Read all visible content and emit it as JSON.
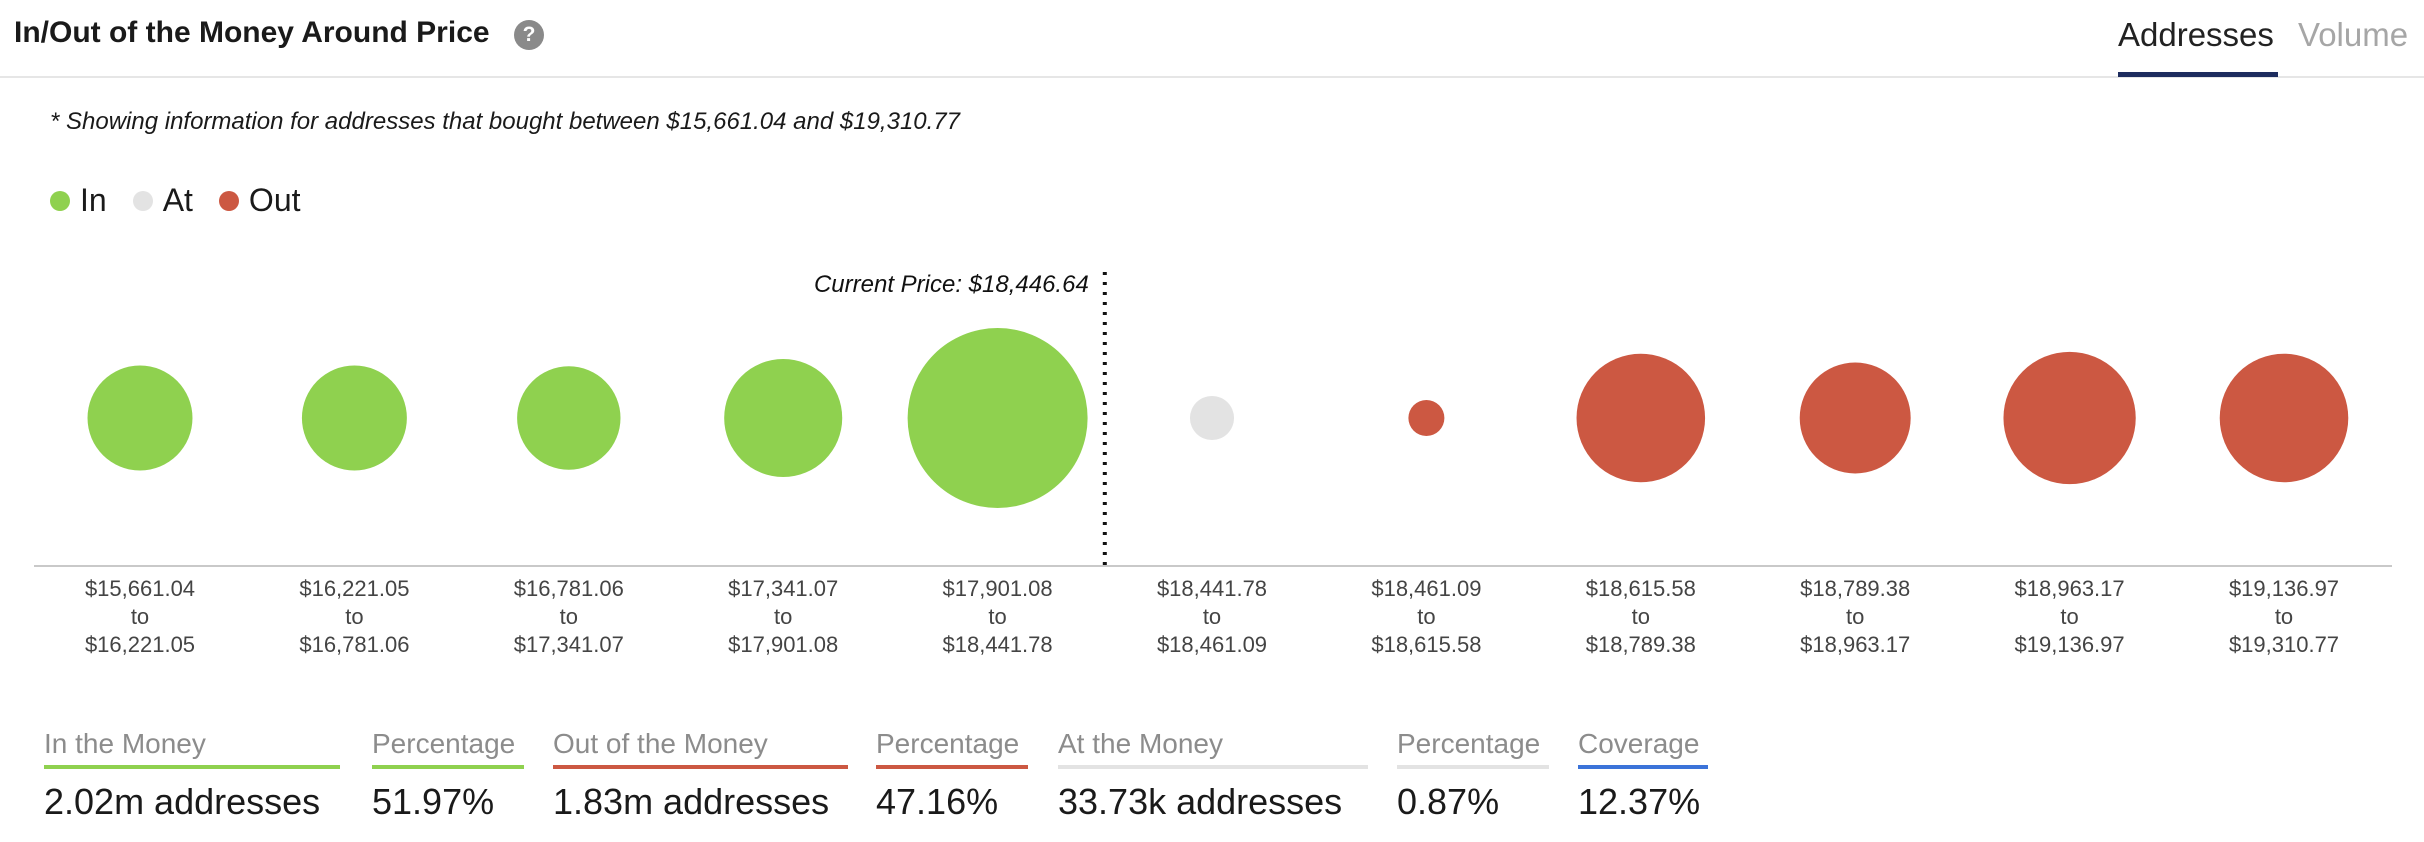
{
  "header": {
    "title": "In/Out of the Money Around Price",
    "help_icon": "question-circle-icon",
    "tabs": [
      {
        "label": "Addresses",
        "active": true
      },
      {
        "label": "Volume",
        "active": false
      }
    ]
  },
  "note": "* Showing information for addresses that bought between $15,661.04 and $19,310.77",
  "legend": [
    {
      "label": "In",
      "color": "#8fd14f"
    },
    {
      "label": "At",
      "color": "#e3e3e3"
    },
    {
      "label": "Out",
      "color": "#cc5842"
    }
  ],
  "chart_data": {
    "type": "bubble",
    "current_price_label": "Current Price: $18,446.64",
    "current_price_after_index": 4,
    "colors": {
      "In": "#8fd14f",
      "At": "#e3e3e3",
      "Out": "#cc5842"
    },
    "categories": [
      {
        "from": "$15,661.04",
        "to": "$16,221.05",
        "status": "In",
        "size": 0.34
      },
      {
        "from": "$16,221.05",
        "to": "$16,781.06",
        "status": "In",
        "size": 0.34
      },
      {
        "from": "$16,781.06",
        "to": "$17,341.07",
        "status": "In",
        "size": 0.33
      },
      {
        "from": "$17,341.07",
        "to": "$17,901.08",
        "status": "In",
        "size": 0.43
      },
      {
        "from": "$17,901.08",
        "to": "$18,441.78",
        "status": "In",
        "size": 1.0
      },
      {
        "from": "$18,441.78",
        "to": "$18,461.09",
        "status": "At",
        "size": 0.06
      },
      {
        "from": "$18,461.09",
        "to": "$18,615.58",
        "status": "Out",
        "size": 0.023
      },
      {
        "from": "$18,615.58",
        "to": "$18,789.38",
        "status": "Out",
        "size": 0.51
      },
      {
        "from": "$18,789.38",
        "to": "$18,963.17",
        "status": "Out",
        "size": 0.38
      },
      {
        "from": "$18,963.17",
        "to": "$19,136.97",
        "status": "Out",
        "size": 0.54
      },
      {
        "from": "$19,136.97",
        "to": "$19,310.77",
        "status": "Out",
        "size": 0.51
      }
    ],
    "to_word": "to"
  },
  "stats": [
    {
      "label": "In the Money",
      "value": "2.02m addresses",
      "color": "#8fd14f"
    },
    {
      "label": "Percentage",
      "value": "51.97%",
      "color": "#8fd14f"
    },
    {
      "label": "Out of the Money",
      "value": "1.83m addresses",
      "color": "#cc5842"
    },
    {
      "label": "Percentage",
      "value": "47.16%",
      "color": "#cc5842"
    },
    {
      "label": "At the Money",
      "value": "33.73k addresses",
      "color": "#e3e3e3"
    },
    {
      "label": "Percentage",
      "value": "0.87%",
      "color": "#e3e3e3"
    },
    {
      "label": "Coverage",
      "value": "12.37%",
      "color": "#3b73d9"
    }
  ]
}
